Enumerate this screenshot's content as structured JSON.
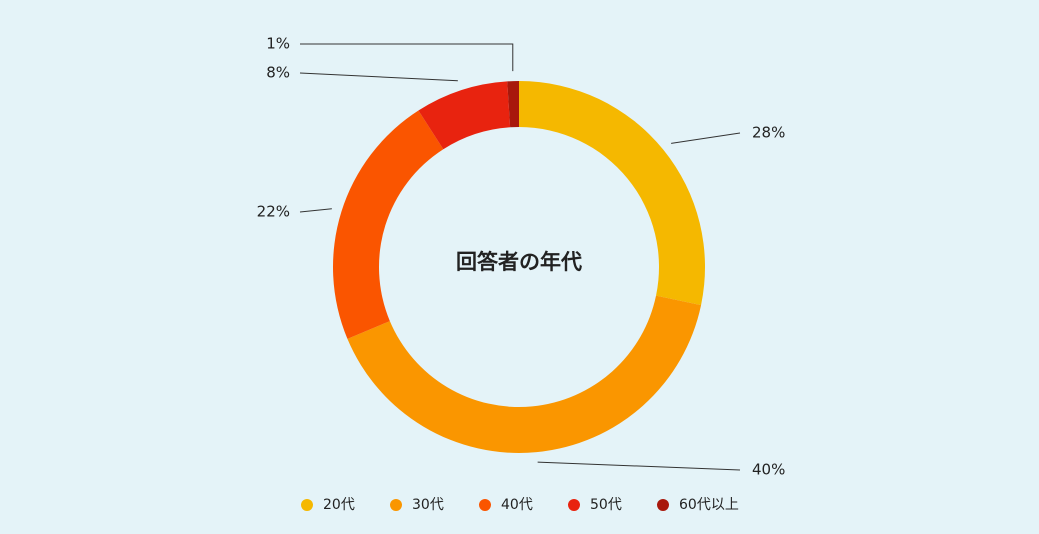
{
  "chart_data": {
    "type": "donut",
    "title": "回答者の年代",
    "categories": [
      "20代",
      "30代",
      "40代",
      "50代",
      "60代以上"
    ],
    "values": [
      28,
      40,
      22,
      8,
      1
    ],
    "value_labels": [
      "28%",
      "40%",
      "22%",
      "8%",
      "1%"
    ],
    "colors": [
      "#f5b800",
      "#fa9600",
      "#fa5500",
      "#e8230f",
      "#a8180c"
    ],
    "legend": "bottom"
  }
}
